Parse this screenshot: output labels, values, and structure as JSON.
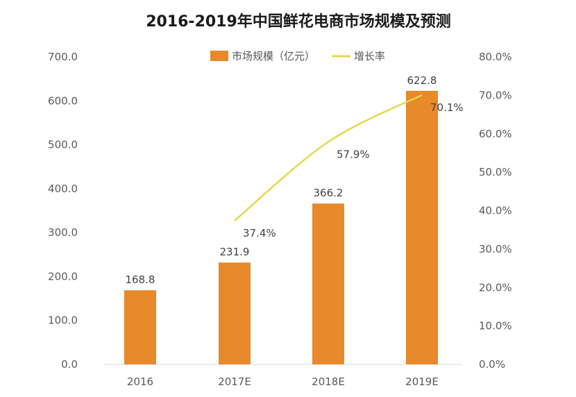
{
  "chart_data": {
    "type": "bar",
    "title": "2016-2019年中国鲜花电商市场规模及预测",
    "categories": [
      "2016",
      "2017E",
      "2018E",
      "2019E"
    ],
    "series": [
      {
        "name": "市场规模（亿元）",
        "type": "bar",
        "axis": "left",
        "color": "#E8892A",
        "values": [
          168.8,
          231.9,
          366.2,
          622.8
        ],
        "labels": [
          "168.8",
          "231.9",
          "366.2",
          "622.8"
        ]
      },
      {
        "name": "增长率",
        "type": "line",
        "axis": "right",
        "color": "#E6D84A",
        "values": [
          null,
          37.4,
          57.9,
          70.1
        ],
        "labels": [
          "",
          "37.4%",
          "57.9%",
          "70.1%"
        ]
      }
    ],
    "y_left": {
      "ylim": [
        0,
        700
      ],
      "ticks": [
        0,
        100,
        200,
        300,
        400,
        500,
        600,
        700
      ],
      "tick_labels": [
        "0.0",
        "100.0",
        "200.0",
        "300.0",
        "400.0",
        "500.0",
        "600.0",
        "700.0"
      ]
    },
    "y_right": {
      "ylim": [
        0,
        80
      ],
      "ticks": [
        0,
        10,
        20,
        30,
        40,
        50,
        60,
        70,
        80
      ],
      "tick_labels": [
        "0.0%",
        "10.0%",
        "20.0%",
        "30.0%",
        "40.0%",
        "50.0%",
        "60.0%",
        "70.0%",
        "80.0%"
      ]
    },
    "grid": false,
    "legend_position": "top-center"
  }
}
